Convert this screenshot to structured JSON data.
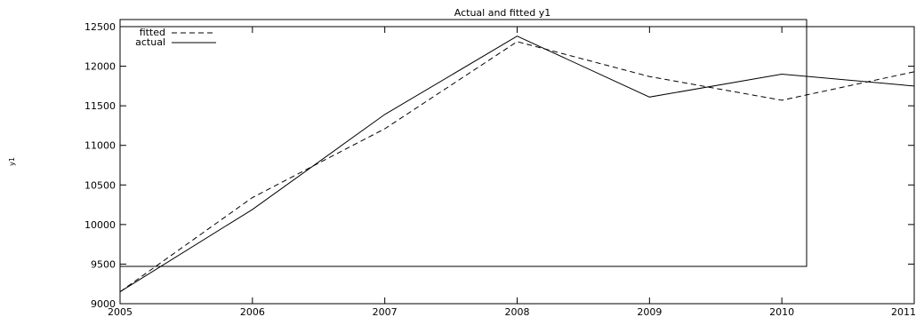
{
  "chart_data": {
    "type": "line",
    "title": "Actual and fitted y1",
    "xlabel": "",
    "ylabel": "y1",
    "x": [
      2005,
      2006,
      2007,
      2008,
      2009,
      2010,
      2011
    ],
    "x_ticks": [
      "2005",
      "2006",
      "2007",
      "2008",
      "2009",
      "2010",
      "2011"
    ],
    "y_ticks": [
      "9000",
      "9500",
      "10000",
      "10500",
      "11000",
      "11500",
      "12000",
      "12500"
    ],
    "xlim": [
      2005,
      2011
    ],
    "ylim": [
      9000,
      12500
    ],
    "grid": false,
    "legend_position": "top-left",
    "series": [
      {
        "name": "fitted",
        "style": "dashed",
        "color": "#000000",
        "values": [
          9150,
          10340,
          11210,
          12310,
          11870,
          11570,
          11930
        ]
      },
      {
        "name": "actual",
        "style": "solid",
        "color": "#000000",
        "values": [
          9150,
          10190,
          11390,
          12380,
          11610,
          11900,
          11750
        ]
      }
    ]
  }
}
